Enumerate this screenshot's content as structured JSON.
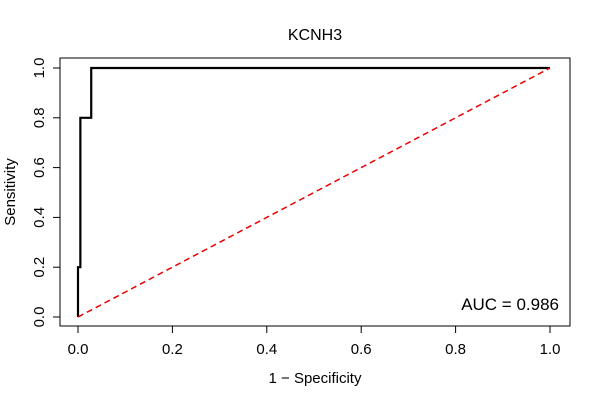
{
  "chart_data": {
    "type": "line",
    "title": "KCNH3",
    "xlabel": "1 − Specificity",
    "ylabel": "Sensitivity",
    "xlim": [
      0,
      1
    ],
    "ylim": [
      0,
      1
    ],
    "xticks": [
      "0.0",
      "0.2",
      "0.4",
      "0.6",
      "0.8",
      "1.0"
    ],
    "yticks": [
      "0.0",
      "0.2",
      "0.4",
      "0.6",
      "0.8",
      "1.0"
    ],
    "annotation": "AUC = 0.986",
    "grid": false,
    "series": [
      {
        "role": "roc",
        "color": "#000000",
        "style": "solid",
        "x": [
          0.0,
          0.0,
          0.005,
          0.005,
          0.015,
          0.015,
          0.028,
          0.028,
          1.0
        ],
        "y": [
          0.0,
          0.2,
          0.2,
          0.8,
          0.8,
          0.8,
          0.8,
          1.0,
          1.0
        ]
      },
      {
        "role": "reference",
        "color": "#ee0000",
        "style": "dashed",
        "x": [
          0.0,
          1.0
        ],
        "y": [
          0.0,
          1.0
        ]
      }
    ]
  }
}
